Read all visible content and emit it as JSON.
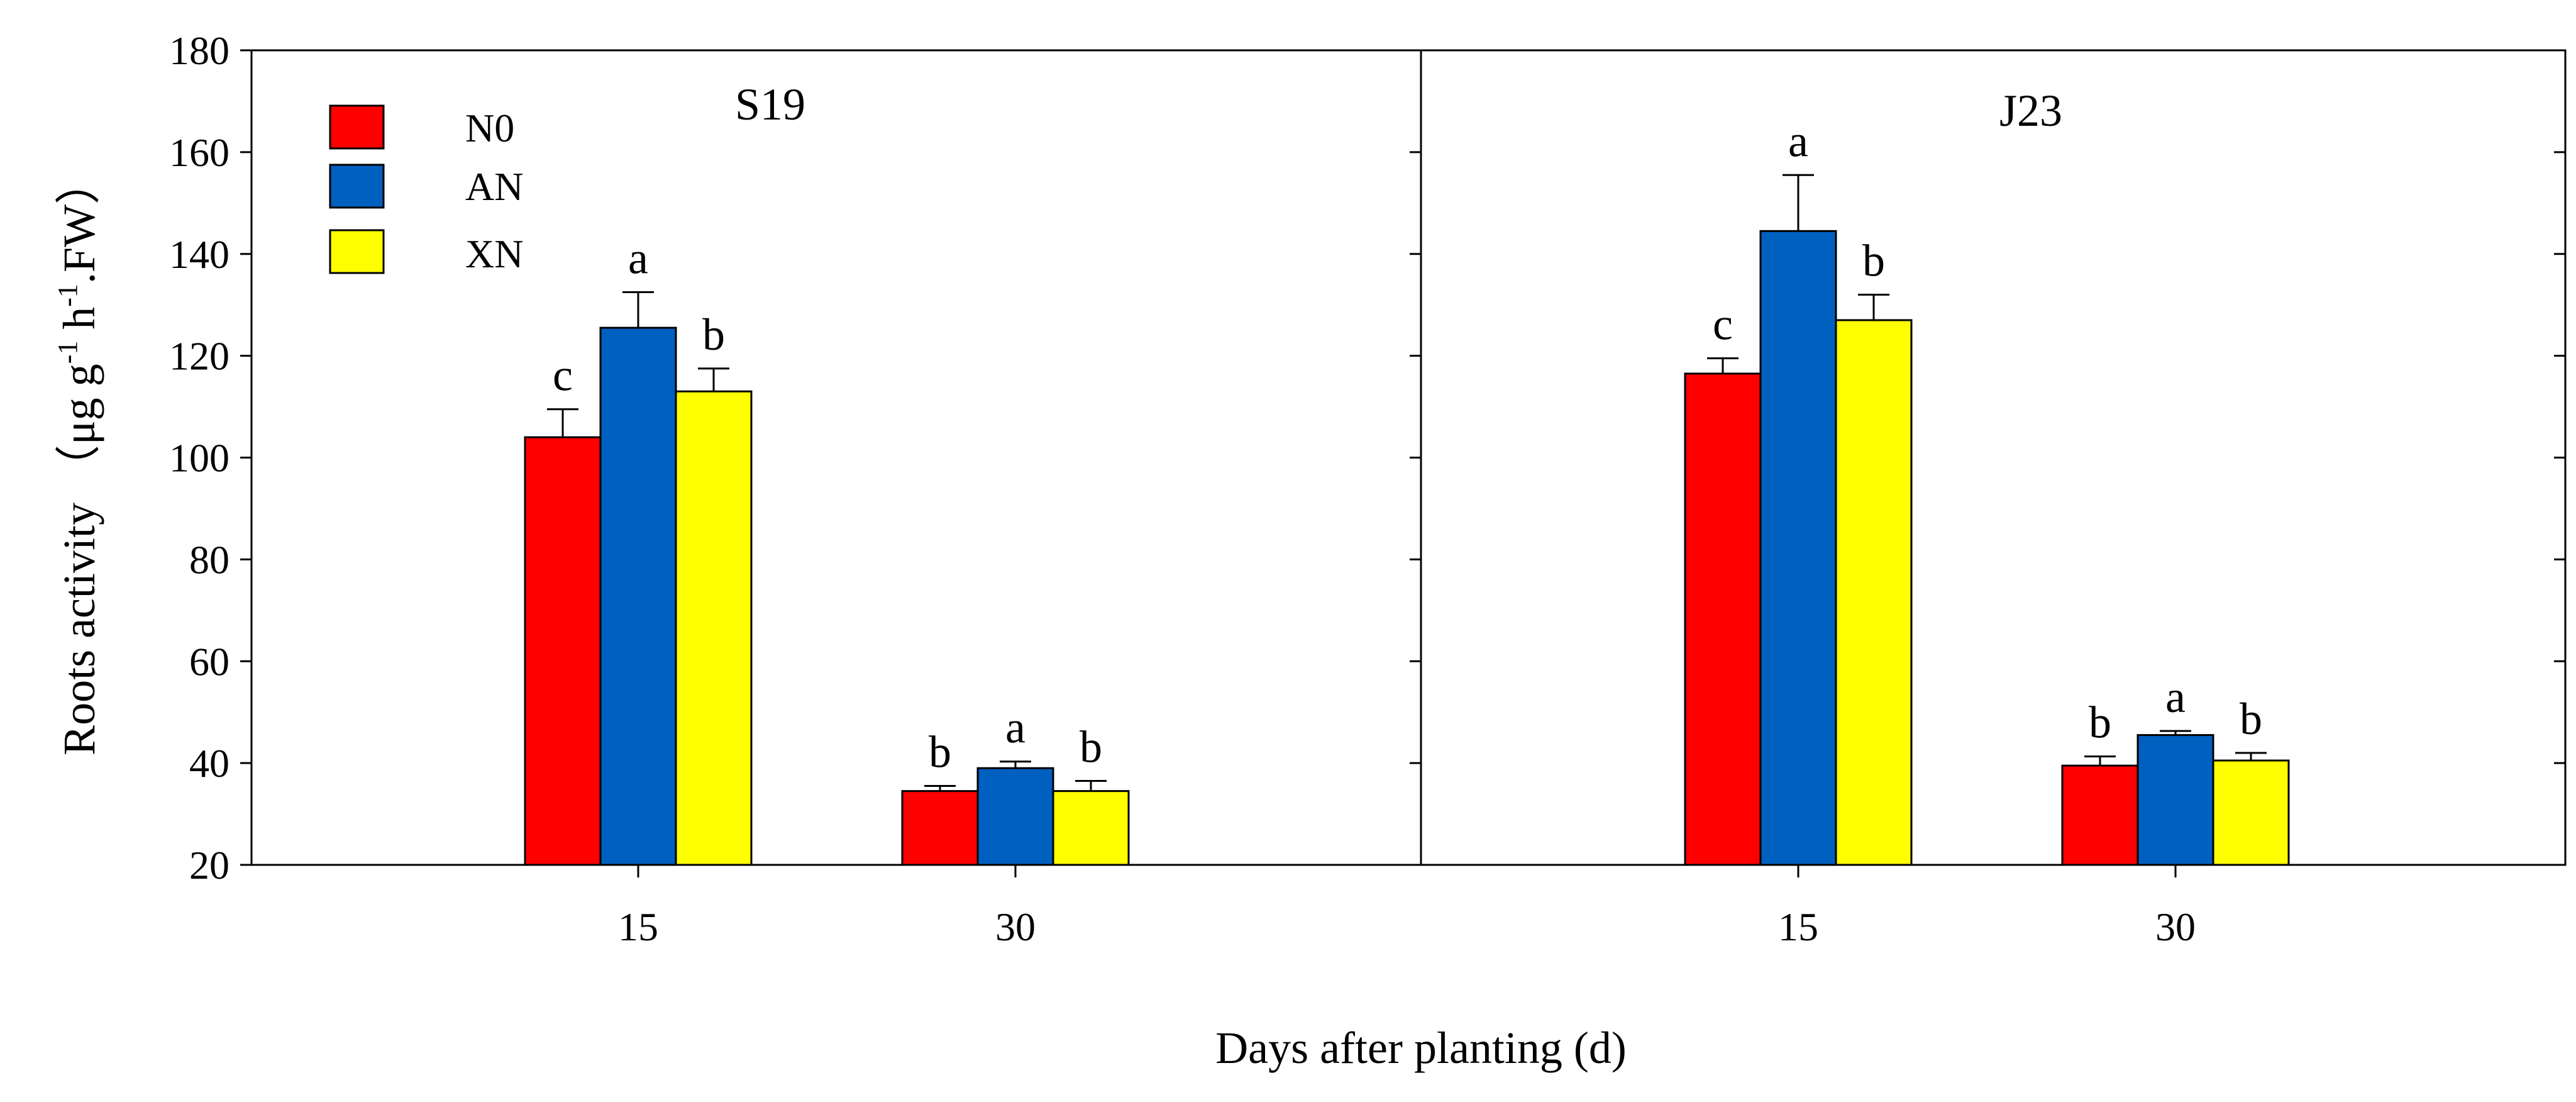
{
  "chart_data": {
    "type": "bar",
    "xlabel": "Days after planting (d)",
    "ylabel": {
      "main": "Roots activity",
      "unit_open": "（μg g",
      "sup1": "-1",
      "unit_mid": " h",
      "sup2": "-1",
      "unit_close": ".FW）"
    },
    "ylim": [
      20,
      180
    ],
    "yticks": [
      20,
      40,
      60,
      80,
      100,
      120,
      140,
      160,
      180
    ],
    "categories": [
      "15",
      "30"
    ],
    "legend": [
      {
        "name": "N0",
        "color": "#FF0000"
      },
      {
        "name": "AN",
        "color": "#0060C0"
      },
      {
        "name": "XN",
        "color": "#FFFF00"
      }
    ],
    "panels": [
      {
        "title": "S19",
        "series": [
          {
            "name": "N0",
            "values": [
              104,
              34.5
            ],
            "errors": [
              5.5,
              1.0
            ],
            "labels": [
              "c",
              "b"
            ]
          },
          {
            "name": "AN",
            "values": [
              125.5,
              39
            ],
            "errors": [
              7,
              1.3
            ],
            "labels": [
              "a",
              "a"
            ]
          },
          {
            "name": "XN",
            "values": [
              113,
              34.5
            ],
            "errors": [
              4.5,
              2.0
            ],
            "labels": [
              "b",
              "b"
            ]
          }
        ]
      },
      {
        "title": "J23",
        "series": [
          {
            "name": "N0",
            "values": [
              116.5,
              39.5
            ],
            "errors": [
              3,
              1.8
            ],
            "labels": [
              "c",
              "b"
            ]
          },
          {
            "name": "AN",
            "values": [
              144.5,
              45.5
            ],
            "errors": [
              11,
              0.8
            ],
            "labels": [
              "a",
              "a"
            ]
          },
          {
            "name": "XN",
            "values": [
              127,
              40.5
            ],
            "errors": [
              5,
              1.5
            ],
            "labels": [
              "b",
              "b"
            ]
          }
        ]
      }
    ]
  }
}
